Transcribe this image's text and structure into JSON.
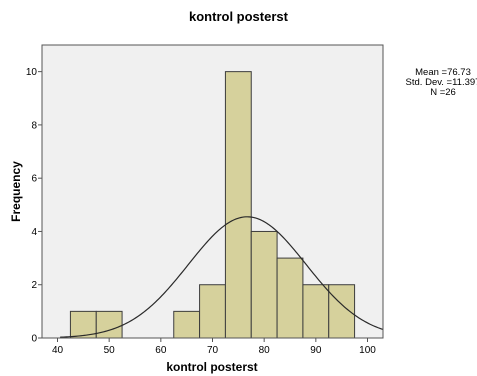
{
  "chart_data": {
    "type": "histogram",
    "title": "kontrol posterst",
    "xlabel": "kontrol posterst",
    "ylabel": "Frequency",
    "xlim": [
      37,
      103
    ],
    "ylim": [
      0,
      11
    ],
    "xticks": [
      40,
      50,
      60,
      70,
      80,
      90,
      100
    ],
    "yticks": [
      0,
      2,
      4,
      6,
      8,
      10
    ],
    "bin_width": 5,
    "bins": [
      {
        "start": 42.5,
        "end": 47.5,
        "count": 1
      },
      {
        "start": 47.5,
        "end": 52.5,
        "count": 1
      },
      {
        "start": 62.5,
        "end": 67.5,
        "count": 1
      },
      {
        "start": 67.5,
        "end": 72.5,
        "count": 2
      },
      {
        "start": 72.5,
        "end": 77.5,
        "count": 10
      },
      {
        "start": 77.5,
        "end": 82.5,
        "count": 4
      },
      {
        "start": 82.5,
        "end": 87.5,
        "count": 3
      },
      {
        "start": 87.5,
        "end": 92.5,
        "count": 2
      },
      {
        "start": 92.5,
        "end": 97.5,
        "count": 2
      }
    ],
    "normal_curve": {
      "mean": 76.73,
      "std": 11.397,
      "n": 26
    },
    "stats_text": [
      "Mean =76.73",
      "Std. Dev. =11.397",
      "N =26"
    ],
    "grid": false,
    "colors": {
      "bar_fill": "#d6d19c",
      "bar_stroke": "#3c3c3c",
      "plot_bg": "#f0f0f0",
      "curve": "#2a2a2a"
    }
  }
}
